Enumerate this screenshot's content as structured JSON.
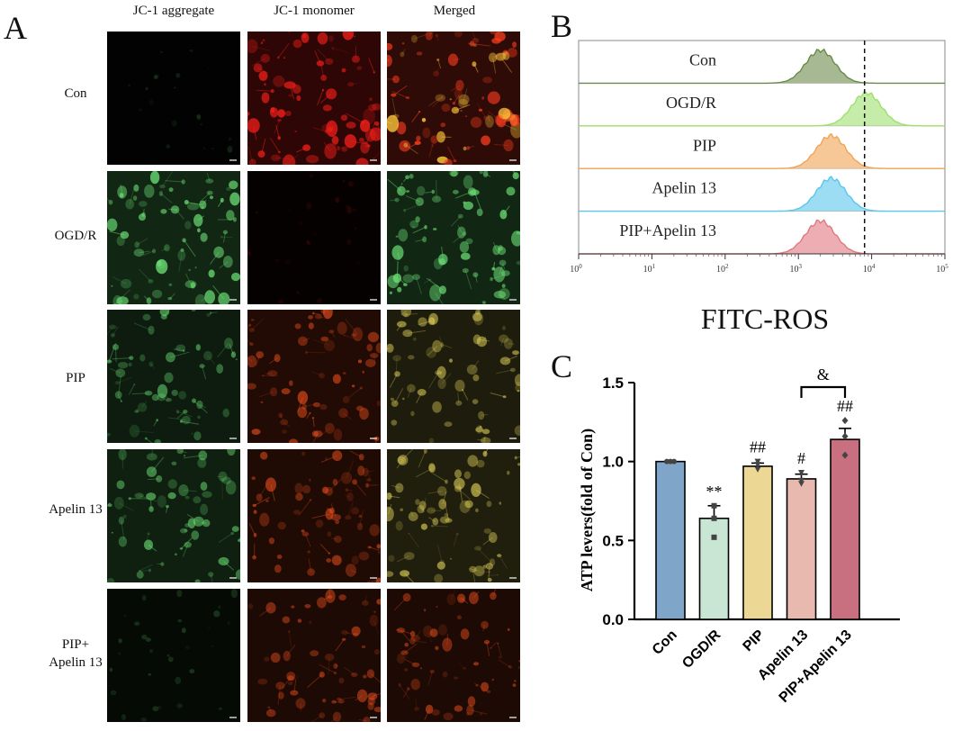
{
  "panel_a": {
    "letter": "A",
    "columns": [
      "JC-1 aggregate",
      "JC-1 monomer",
      "Merged"
    ],
    "rows": [
      {
        "label": "Con",
        "tiles": [
          {
            "hue": "green",
            "level": 0.04
          },
          {
            "hue": "red",
            "level": 0.85
          },
          {
            "hue": "redyellow",
            "level": 0.85
          }
        ]
      },
      {
        "label": "OGD/R",
        "tiles": [
          {
            "hue": "green",
            "level": 0.75
          },
          {
            "hue": "red",
            "level": 0.08
          },
          {
            "hue": "green",
            "level": 0.75
          }
        ]
      },
      {
        "label": "PIP",
        "tiles": [
          {
            "hue": "green",
            "level": 0.55
          },
          {
            "hue": "orange",
            "level": 0.65
          },
          {
            "hue": "yellow",
            "level": 0.6
          }
        ]
      },
      {
        "label": "Apelin 13",
        "tiles": [
          {
            "hue": "green",
            "level": 0.6
          },
          {
            "hue": "orange",
            "level": 0.6
          },
          {
            "hue": "yellow",
            "level": 0.65
          }
        ]
      },
      {
        "label": "PIP+",
        "label2": "Apelin 13",
        "tiles": [
          {
            "hue": "green",
            "level": 0.2
          },
          {
            "hue": "orange",
            "level": 0.55
          },
          {
            "hue": "orange",
            "level": 0.55
          }
        ]
      }
    ]
  },
  "chart_data": [
    {
      "type": "area",
      "panel": "B",
      "xlabel": "FITC-ROS",
      "x_scale": "log",
      "xlim": [
        1,
        100000
      ],
      "x_ticks": [
        {
          "value": 1,
          "base": "10",
          "exp": "0"
        },
        {
          "value": 10,
          "base": "10",
          "exp": "1"
        },
        {
          "value": 100,
          "base": "10",
          "exp": "2"
        },
        {
          "value": 1000,
          "base": "10",
          "exp": "3"
        },
        {
          "value": 10000,
          "base": "10",
          "exp": "4"
        },
        {
          "value": 100000,
          "base": "10",
          "exp": "5"
        }
      ],
      "reference_line_x": 8000,
      "series": [
        {
          "name": "Con",
          "peak": 2000,
          "color": "#6b8a4a"
        },
        {
          "name": "OGD/R",
          "peak": 8500,
          "color": "#9ee06e"
        },
        {
          "name": "PIP",
          "peak": 2800,
          "color": "#f0a454"
        },
        {
          "name": "Apelin 13",
          "peak": 2800,
          "color": "#5cc6ec"
        },
        {
          "name": "PIP+Apelin 13",
          "peak": 2000,
          "color": "#e0787e"
        }
      ]
    },
    {
      "type": "bar",
      "panel": "C",
      "categories": [
        "Con",
        "OGD/R",
        "PIP",
        "Apelin 13",
        "PIP+Apelin 13"
      ],
      "values": [
        1.0,
        0.64,
        0.97,
        0.89,
        1.14
      ],
      "errors": [
        0.0,
        0.08,
        0.02,
        0.03,
        0.07
      ],
      "points": [
        [
          1.0,
          1.0,
          1.0
        ],
        [
          0.72,
          0.64,
          0.52
        ],
        [
          0.95,
          0.98,
          1.0
        ],
        [
          0.86,
          0.88,
          0.93
        ],
        [
          1.04,
          1.16,
          1.26
        ]
      ],
      "significance": [
        "",
        "**",
        "##",
        "#",
        "##"
      ],
      "bracket": {
        "from": "Apelin 13",
        "to": "PIP+Apelin 13",
        "label": "&"
      },
      "ylabel": "ATP levers(fold of Con)",
      "xlabel": "",
      "ylim": [
        0,
        1.5
      ],
      "y_ticks": [
        "0.0",
        "0.5",
        "1.0",
        "1.5"
      ],
      "colors": [
        "#7fa6c9",
        "#c9e5d4",
        "#ecd794",
        "#e8b9ae",
        "#c8707f"
      ]
    }
  ]
}
